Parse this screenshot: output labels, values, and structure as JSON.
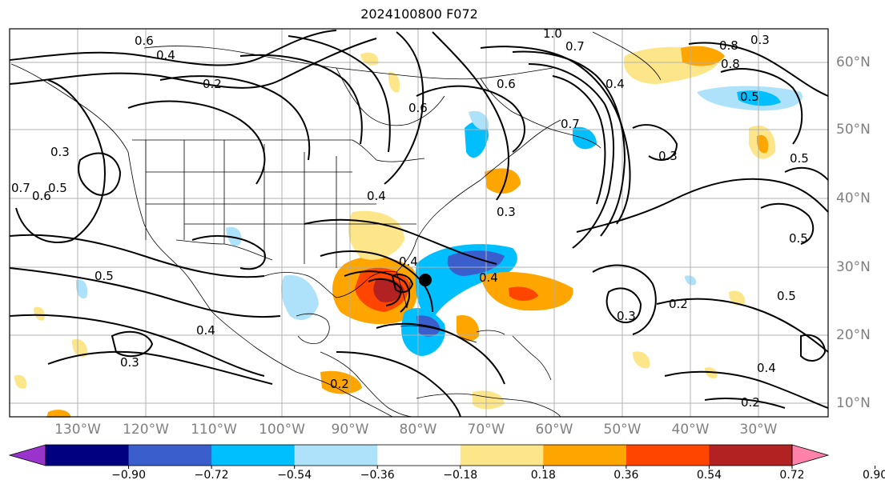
{
  "title": "2024100800 F072",
  "lon_labels": [
    "130°W",
    "120°W",
    "110°W",
    "100°W",
    "90°W",
    "80°W",
    "70°W",
    "60°W",
    "50°W",
    "40°W",
    "30°W"
  ],
  "lat_labels": [
    "60°N",
    "50°N",
    "40°N",
    "30°N",
    "20°N",
    "10°N"
  ],
  "colorbar": {
    "ticks": [
      "−0.90",
      "−0.72",
      "−0.54",
      "−0.36",
      "−0.18",
      "0.18",
      "0.36",
      "0.54",
      "0.72",
      "0.90"
    ],
    "colors": [
      "#9933cc",
      "#000080",
      "#3a5fcd",
      "#00bfff",
      "#aee2fa",
      "#ffffff",
      "#fde68a",
      "#ffa500",
      "#ff4500",
      "#b22222",
      "#ff82ab"
    ]
  },
  "contour_labels": [
    "0.6",
    "0.4",
    "0.2",
    "0.7",
    "1.0",
    "0.7",
    "0.8",
    "0.3",
    "0.4",
    "0.5",
    "0.8",
    "0.5",
    "0.3",
    "0.3",
    "0.5",
    "0.6",
    "0.7",
    "0.4",
    "0.6",
    "0.6",
    "0.3",
    "0.5",
    "0.2",
    "0.3",
    "0.4",
    "0.5",
    "0.2",
    "0.5",
    "0.4",
    "0.3",
    "0.4",
    "0.2",
    "0.4"
  ],
  "colors": {
    "contour": "#000000",
    "coast": "#000000",
    "grid": "#b0b0b0",
    "axis_label": "#808080"
  }
}
